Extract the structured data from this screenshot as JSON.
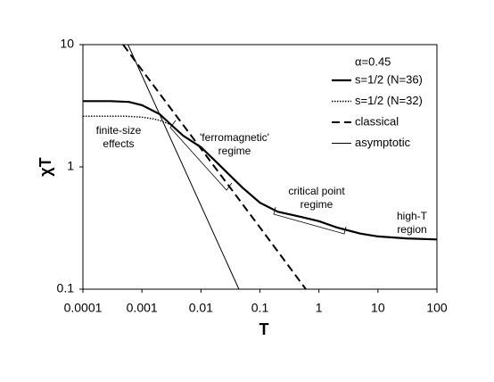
{
  "chart_data": {
    "type": "line",
    "x_label": "T",
    "y_label": "χT",
    "xscale": "log",
    "yscale": "log",
    "xlim": [
      0.0001,
      100
    ],
    "xticks": [
      0.0001,
      0.001,
      0.01,
      0.1,
      1,
      10,
      100
    ],
    "ylim": [
      0.1,
      10
    ],
    "yticks": [
      0.1,
      1,
      10
    ],
    "legend_title": "α=0.45",
    "legend": "upper right",
    "series": [
      {
        "name": "s=1/2 (N=36)",
        "color": "#000000",
        "style": "solid",
        "x": [
          0.0001,
          0.0003,
          0.0006,
          0.001,
          0.002,
          0.003,
          0.005,
          0.01,
          0.02,
          0.05,
          0.1,
          0.2,
          0.5,
          1,
          2,
          5,
          10,
          30,
          100
        ],
        "values": [
          3.45,
          3.45,
          3.4,
          3.2,
          2.7,
          2.25,
          1.8,
          1.45,
          1.05,
          0.68,
          0.51,
          0.43,
          0.39,
          0.36,
          0.32,
          0.285,
          0.27,
          0.26,
          0.255
        ]
      },
      {
        "name": "s=1/2 (N=32)",
        "color": "#000000",
        "style": "dotted",
        "x": [
          0.0001,
          0.0005,
          0.001,
          0.0015,
          0.002,
          0.003
        ],
        "values": [
          2.6,
          2.6,
          2.55,
          2.48,
          2.4,
          2.22
        ]
      },
      {
        "name": "classical",
        "color": "#000000",
        "style": "dashed",
        "x": [
          0.00048,
          0.001,
          0.01,
          0.1,
          0.6
        ],
        "values": [
          10,
          6.2,
          1.41,
          0.32,
          0.1
        ]
      },
      {
        "name": "asymptotic",
        "color": "#000000",
        "style": "thin",
        "x": [
          0.00058,
          0.044
        ],
        "values": [
          10,
          0.1
        ]
      }
    ],
    "annotations": [
      {
        "lines": [
          "finite-size",
          "effects"
        ]
      },
      {
        "lines": [
          "'ferromagnetic'",
          "regime"
        ]
      },
      {
        "lines": [
          "critical point",
          "regime"
        ]
      },
      {
        "lines": [
          "high-T",
          "region"
        ]
      }
    ]
  }
}
